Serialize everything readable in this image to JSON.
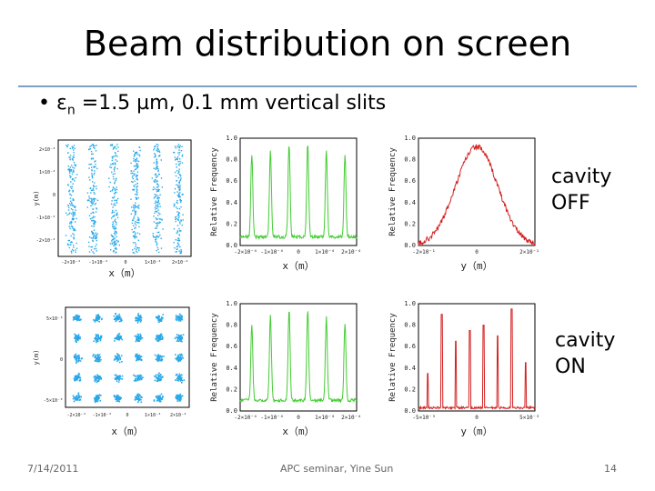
{
  "slide": {
    "title": "Beam distribution on screen",
    "bullet_symbol": "•",
    "bullet_prefix": "ε",
    "bullet_sub": "n",
    "bullet_rest": " =1.5 µm, 0.1 mm vertical slits",
    "cavity_off": [
      "cavity",
      "OFF"
    ],
    "cavity_on": [
      "cavity",
      "ON"
    ]
  },
  "footer": {
    "date": "7/14/2011",
    "center": "APC seminar, Yine Sun",
    "page": "14"
  },
  "colors": {
    "scatter_off": "#2aa8e8",
    "scatter_on": "#2aa8e8",
    "x_profile": "#44cc33",
    "y_profile": "#d42020"
  },
  "chart_data": [
    {
      "type": "scatter",
      "id": "xy-off",
      "xlabel": "x（m）",
      "ylabel": "y(m)",
      "x": [
        -0.0002,
        -0.0001,
        0,
        0.0001,
        0.0002
      ],
      "note_clusters": "6 vertical bands",
      "xlim": [
        -0.00025,
        0.00025
      ]
    },
    {
      "type": "line",
      "id": "xprof-off",
      "xlabel": "x（m）",
      "ylabel": "Relative Frequency",
      "yticks": [
        "0.0",
        "0.2",
        "0.4",
        "0.6",
        "0.8",
        "1.0"
      ],
      "ylim": [
        0,
        1.0
      ],
      "peaks_x": [
        -0.00025,
        -0.00015,
        -5e-05,
        5e-05,
        0.00015,
        0.00025
      ],
      "peak_y": [
        0.85,
        0.9,
        0.95,
        0.95,
        0.9,
        0.85
      ],
      "base_y": 0.08
    },
    {
      "type": "line",
      "id": "yprof-off",
      "xlabel": "y（m）",
      "ylabel": "Relative Frequency",
      "yticks": [
        "0.0",
        "0.2",
        "0.4",
        "0.6",
        "0.8",
        "1.0"
      ],
      "xticks": [
        "-2×10⁻¹",
        "0",
        "2×10⁻¹"
      ],
      "ylim": [
        0,
        1.0
      ],
      "gaussian": {
        "center": 0,
        "sigma": 0.18,
        "amplitude": 0.92
      }
    },
    {
      "type": "scatter",
      "id": "xy-on",
      "xlabel": "x（m）",
      "ylabel": "y(m)",
      "note_clusters": "6 × 5 grid of beamlets"
    },
    {
      "type": "line",
      "id": "xprof-on",
      "xlabel": "x（m）",
      "ylabel": "Relative Frequency",
      "yticks": [
        "0.0",
        "0.2",
        "0.4",
        "0.6",
        "0.8",
        "1.0"
      ],
      "ylim": [
        0,
        1.0
      ],
      "peaks_x": [
        -0.00025,
        -0.00015,
        -5e-05,
        5e-05,
        0.00015,
        0.00025
      ],
      "peak_y": [
        0.8,
        0.9,
        0.95,
        0.95,
        0.88,
        0.82
      ],
      "base_y": 0.1
    },
    {
      "type": "line",
      "id": "yprof-on",
      "xlabel": "y（m）",
      "ylabel": "Relative Frequency",
      "yticks": [
        "0.0",
        "0.2",
        "0.4",
        "0.6",
        "0.8",
        "1.0"
      ],
      "xticks": [
        "-5×10⁻³",
        "0",
        "5×10⁻³"
      ],
      "ylim": [
        0,
        1.0
      ],
      "spikes": [
        0.35,
        0.9,
        0.65,
        0.75,
        0.8,
        0.7,
        0.95,
        0.45
      ]
    }
  ]
}
